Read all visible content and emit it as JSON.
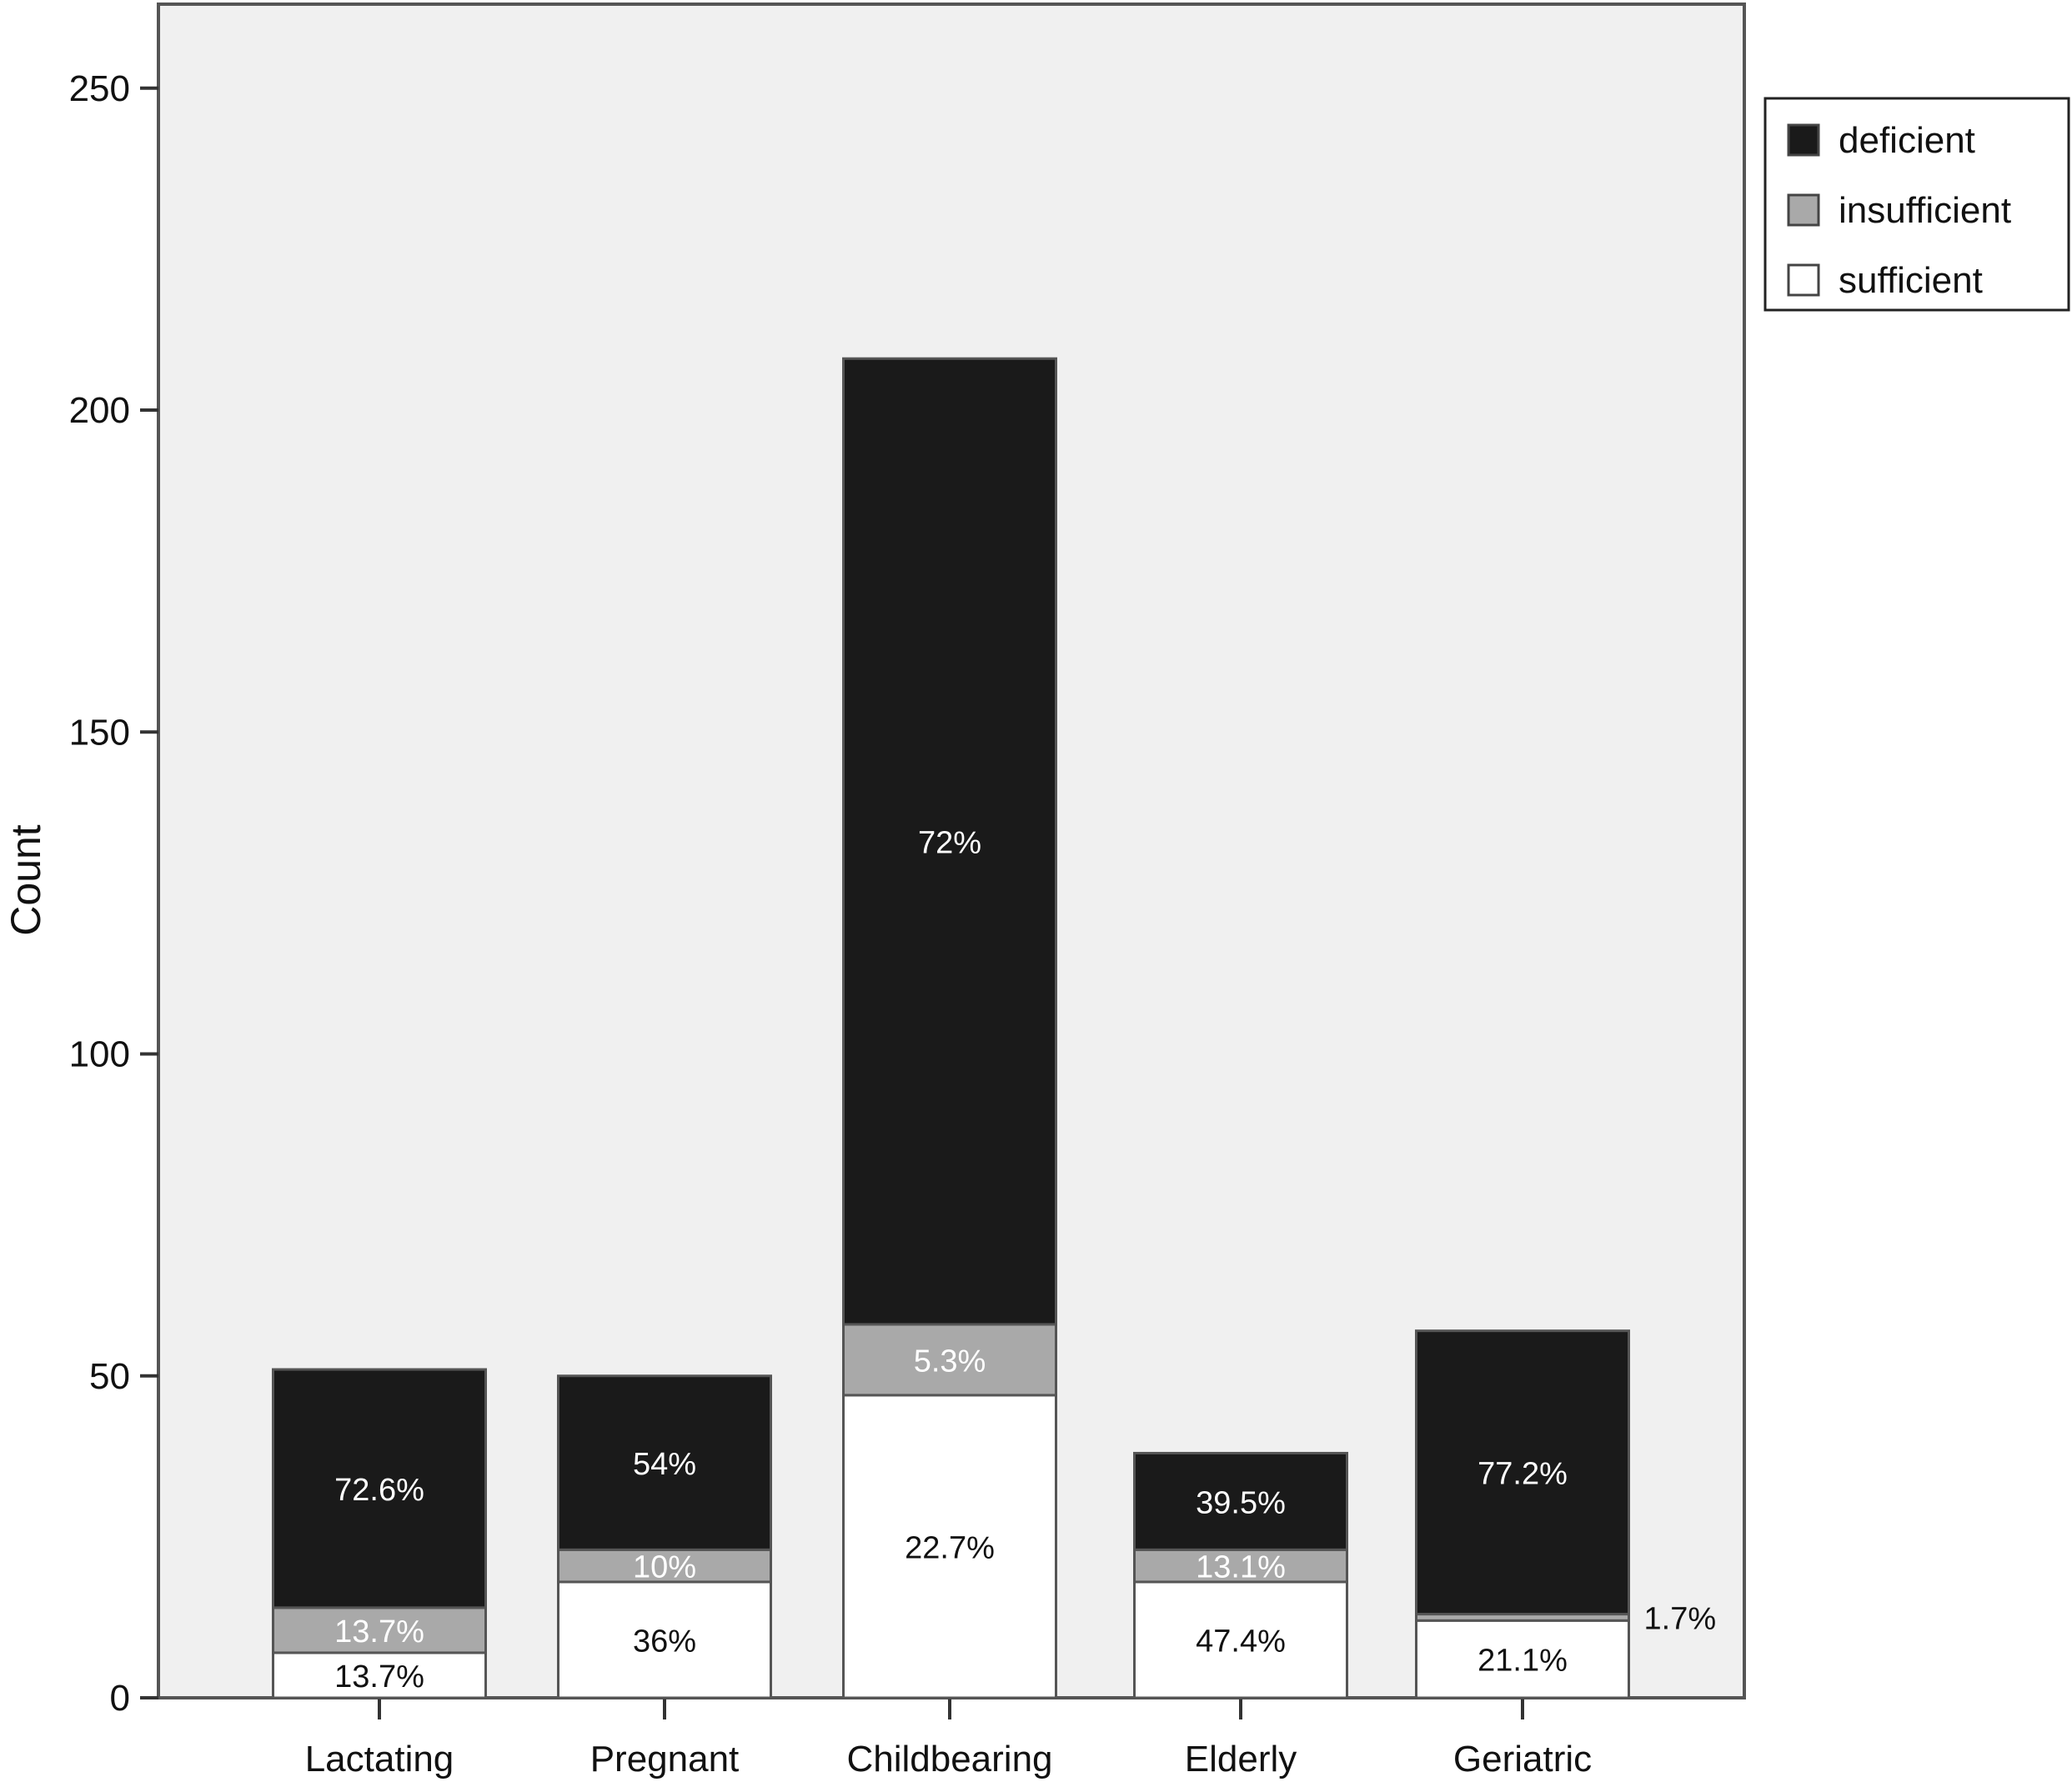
{
  "chart_data": {
    "type": "bar",
    "stacked": true,
    "title": "",
    "xlabel": "",
    "ylabel": "Count",
    "ylim": [
      0,
      260
    ],
    "yticks": [
      0,
      50,
      100,
      150,
      200,
      250
    ],
    "grid": false,
    "legend_position": "top-right",
    "categories": [
      "Lactating",
      "Pregnant",
      "Childbearing",
      "Elderly",
      "Geriatric"
    ],
    "series": [
      {
        "name": "sufficient",
        "color": "#ffffff",
        "values": [
          7,
          18,
          47,
          18,
          12
        ],
        "labels": [
          "13.7%",
          "36%",
          "22.7%",
          "47.4%",
          "21.1%"
        ]
      },
      {
        "name": "insufficient",
        "color": "#a9a9a9",
        "values": [
          7,
          5,
          11,
          5,
          1
        ],
        "labels": [
          "13.7%",
          "10%",
          "5.3%",
          "13.1%",
          "1.7%"
        ]
      },
      {
        "name": "deficient",
        "color": "#1a1a1a",
        "values": [
          37,
          27,
          150,
          15,
          44
        ],
        "labels": [
          "72.6%",
          "54%",
          "72%",
          "39.5%",
          "77.2%"
        ]
      }
    ],
    "legend_order": [
      "deficient",
      "insufficient",
      "sufficient"
    ]
  }
}
